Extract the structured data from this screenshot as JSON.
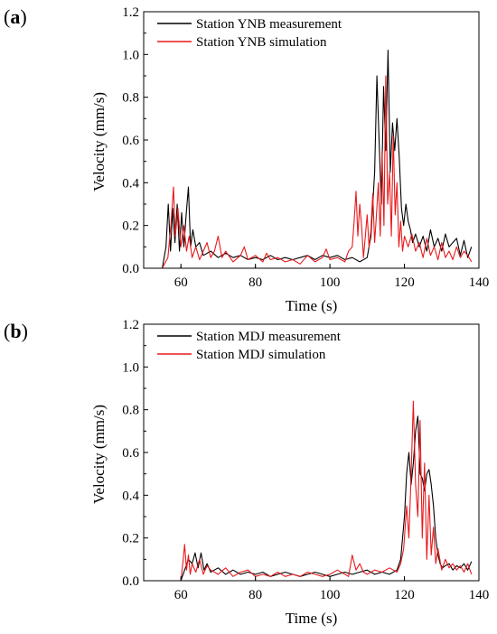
{
  "panels": [
    {
      "label": "(a)",
      "label_letter": "a"
    },
    {
      "label": "(b)",
      "label_letter": "b"
    }
  ],
  "chart_data": [
    {
      "type": "line",
      "panel": "(a)",
      "xlabel": "Time (s)",
      "ylabel": "Velocity (mm/s)",
      "xlim": [
        50,
        140
      ],
      "ylim": [
        0.0,
        1.2
      ],
      "xticks": [
        "60",
        "80",
        "100",
        "120",
        "140"
      ],
      "yticks": [
        "0.0",
        "0.2",
        "0.4",
        "0.6",
        "0.8",
        "1.0",
        "1.2"
      ],
      "legend_position": "top-left",
      "series": [
        {
          "name": "Station YNB measurement",
          "color": "#000000",
          "x": [
            55,
            56,
            56.6,
            57.2,
            57.8,
            58.4,
            59,
            59.6,
            60.2,
            60.8,
            61.4,
            62,
            62.6,
            63.2,
            64,
            65,
            66,
            68,
            70,
            72,
            74,
            76,
            78,
            80,
            82,
            84,
            86,
            88,
            90,
            92,
            94,
            96,
            98,
            100,
            102,
            104,
            106,
            108,
            110,
            111,
            112,
            112.6,
            113.2,
            113.8,
            114.4,
            115,
            115.6,
            116.2,
            116.8,
            117.4,
            118,
            118.6,
            119.2,
            119.8,
            120.4,
            121,
            121.6,
            122.2,
            123,
            124,
            125,
            126,
            127,
            128,
            129,
            130,
            131,
            132,
            133,
            134,
            135,
            136,
            137,
            138
          ],
          "y": [
            0.0,
            0.1,
            0.3,
            0.08,
            0.28,
            0.12,
            0.3,
            0.08,
            0.26,
            0.1,
            0.25,
            0.38,
            0.1,
            0.18,
            0.1,
            0.12,
            0.06,
            0.08,
            0.05,
            0.07,
            0.05,
            0.06,
            0.04,
            0.05,
            0.04,
            0.06,
            0.04,
            0.05,
            0.04,
            0.05,
            0.06,
            0.04,
            0.06,
            0.05,
            0.06,
            0.04,
            0.05,
            0.03,
            0.05,
            0.15,
            0.45,
            0.9,
            0.6,
            0.3,
            0.85,
            0.55,
            1.02,
            0.45,
            0.68,
            0.55,
            0.7,
            0.52,
            0.28,
            0.2,
            0.3,
            0.22,
            0.18,
            0.12,
            0.16,
            0.1,
            0.15,
            0.08,
            0.18,
            0.1,
            0.14,
            0.08,
            0.16,
            0.1,
            0.12,
            0.14,
            0.06,
            0.13,
            0.05,
            0.1
          ]
        },
        {
          "name": "Station YNB simulation",
          "color": "#e8191d",
          "x": [
            55,
            56.5,
            57.3,
            58,
            58.5,
            59.2,
            60,
            60.8,
            61.5,
            62.2,
            63,
            64,
            65,
            66,
            67,
            68,
            69,
            70,
            71,
            72,
            74,
            76,
            77,
            78,
            80,
            82,
            83,
            84,
            86,
            88,
            90,
            92,
            94,
            96,
            98,
            99,
            100,
            102,
            104,
            105,
            106,
            106.5,
            107,
            107.5,
            108,
            108.5,
            109,
            109.5,
            110,
            110.5,
            111,
            111.5,
            112,
            112.5,
            113,
            113.5,
            114,
            114.5,
            115,
            115.5,
            116,
            116.5,
            117,
            117.5,
            118,
            118.5,
            119,
            119.5,
            120,
            121,
            122,
            123,
            124,
            125,
            126,
            127,
            128,
            129,
            130,
            131,
            132,
            133,
            134,
            135,
            136,
            137,
            138
          ],
          "y": [
            0.0,
            0.05,
            0.2,
            0.38,
            0.15,
            0.28,
            0.1,
            0.2,
            0.08,
            0.15,
            0.05,
            0.1,
            0.04,
            0.08,
            0.12,
            0.05,
            0.08,
            0.15,
            0.05,
            0.08,
            0.03,
            0.06,
            0.1,
            0.04,
            0.06,
            0.03,
            0.07,
            0.04,
            0.05,
            0.03,
            0.04,
            0.02,
            0.06,
            0.03,
            0.05,
            0.09,
            0.04,
            0.05,
            0.03,
            0.08,
            0.1,
            0.22,
            0.36,
            0.15,
            0.3,
            0.2,
            0.05,
            0.15,
            0.25,
            0.1,
            0.18,
            0.35,
            0.12,
            0.25,
            0.4,
            0.15,
            0.55,
            0.2,
            0.9,
            0.3,
            0.45,
            0.15,
            0.62,
            0.25,
            0.4,
            0.1,
            0.22,
            0.08,
            0.15,
            0.1,
            0.16,
            0.08,
            0.12,
            0.05,
            0.14,
            0.06,
            0.1,
            0.04,
            0.12,
            0.05,
            0.08,
            0.04,
            0.1,
            0.05,
            0.08,
            0.06,
            0.03
          ]
        }
      ]
    },
    {
      "type": "line",
      "panel": "(b)",
      "xlabel": "Time (s)",
      "ylabel": "Velocity (mm/s)",
      "xlim": [
        50,
        140
      ],
      "ylim": [
        0.0,
        1.2
      ],
      "xticks": [
        "60",
        "80",
        "100",
        "120",
        "140"
      ],
      "yticks": [
        "0.0",
        "0.2",
        "0.4",
        "0.6",
        "0.8",
        "1.0",
        "1.2"
      ],
      "legend_position": "top-left",
      "series": [
        {
          "name": "Station MDJ measurement",
          "color": "#000000",
          "x": [
            60,
            61,
            62,
            63,
            63.8,
            64.6,
            65.4,
            66.2,
            67,
            68,
            70,
            72,
            74,
            76,
            78,
            80,
            82,
            84,
            86,
            88,
            90,
            92,
            94,
            96,
            98,
            100,
            102,
            104,
            106,
            108,
            110,
            112,
            114,
            116,
            118,
            119,
            120,
            120.6,
            121.2,
            121.8,
            122.4,
            123,
            123.6,
            124.2,
            124.8,
            125.4,
            126,
            126.6,
            127.2,
            127.8,
            128.4,
            129,
            129.6,
            130.2,
            131,
            132,
            133,
            134,
            135,
            136,
            137,
            138
          ],
          "y": [
            0.0,
            0.05,
            0.1,
            0.08,
            0.13,
            0.06,
            0.13,
            0.05,
            0.08,
            0.04,
            0.06,
            0.03,
            0.05,
            0.03,
            0.04,
            0.03,
            0.04,
            0.02,
            0.03,
            0.04,
            0.03,
            0.02,
            0.03,
            0.04,
            0.03,
            0.02,
            0.03,
            0.04,
            0.03,
            0.04,
            0.05,
            0.03,
            0.04,
            0.03,
            0.05,
            0.1,
            0.3,
            0.5,
            0.6,
            0.45,
            0.55,
            0.7,
            0.77,
            0.5,
            0.48,
            0.42,
            0.5,
            0.52,
            0.45,
            0.35,
            0.2,
            0.12,
            0.08,
            0.06,
            0.07,
            0.08,
            0.05,
            0.07,
            0.06,
            0.08,
            0.05,
            0.09
          ]
        },
        {
          "name": "Station MDJ simulation",
          "color": "#e8191d",
          "x": [
            60,
            60.5,
            61,
            61.5,
            62,
            62.5,
            63,
            64,
            65,
            66,
            67,
            68,
            70,
            72,
            74,
            76,
            78,
            80,
            82,
            84,
            86,
            88,
            90,
            92,
            94,
            96,
            98,
            100,
            102,
            104,
            105,
            106,
            107,
            108,
            109,
            110,
            112,
            114,
            116,
            118,
            119,
            119.8,
            120.6,
            121.2,
            121.8,
            122.4,
            123,
            123.6,
            124.2,
            124.8,
            125.4,
            126,
            126.6,
            127.2,
            127.8,
            128.4,
            129,
            130,
            131,
            132,
            133,
            134,
            135,
            136,
            137,
            138
          ],
          "y": [
            0.0,
            0.08,
            0.17,
            0.05,
            0.12,
            0.03,
            0.08,
            0.04,
            0.1,
            0.03,
            0.07,
            0.05,
            0.03,
            0.06,
            0.02,
            0.04,
            0.05,
            0.02,
            0.03,
            0.02,
            0.04,
            0.02,
            0.03,
            0.02,
            0.04,
            0.03,
            0.02,
            0.03,
            0.05,
            0.03,
            0.02,
            0.12,
            0.05,
            0.08,
            0.04,
            0.03,
            0.05,
            0.04,
            0.06,
            0.04,
            0.08,
            0.15,
            0.35,
            0.2,
            0.5,
            0.84,
            0.45,
            0.3,
            0.75,
            0.2,
            0.55,
            0.1,
            0.4,
            0.12,
            0.25,
            0.08,
            0.15,
            0.05,
            0.1,
            0.06,
            0.08,
            0.05,
            0.07,
            0.04,
            0.08,
            0.03
          ]
        }
      ]
    }
  ]
}
